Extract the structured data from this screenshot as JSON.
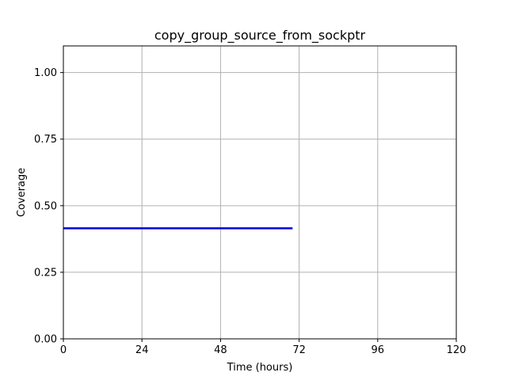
{
  "chart_data": {
    "type": "line",
    "title": "copy_group_source_from_sockptr",
    "xlabel": "Time (hours)",
    "ylabel": "Coverage",
    "xlim": [
      0,
      120
    ],
    "ylim": [
      0,
      1.1
    ],
    "xticks": [
      0,
      24,
      48,
      72,
      96,
      120
    ],
    "yticks": [
      0.0,
      0.25,
      0.5,
      0.75,
      1.0
    ],
    "xtick_labels": [
      "0",
      "24",
      "48",
      "72",
      "96",
      "120"
    ],
    "ytick_labels": [
      "0.00",
      "0.25",
      "0.50",
      "0.75",
      "1.00"
    ],
    "grid": true,
    "series": [
      {
        "color": "#0000dd",
        "x": [
          0,
          70
        ],
        "y": [
          0.415,
          0.415
        ]
      }
    ]
  }
}
